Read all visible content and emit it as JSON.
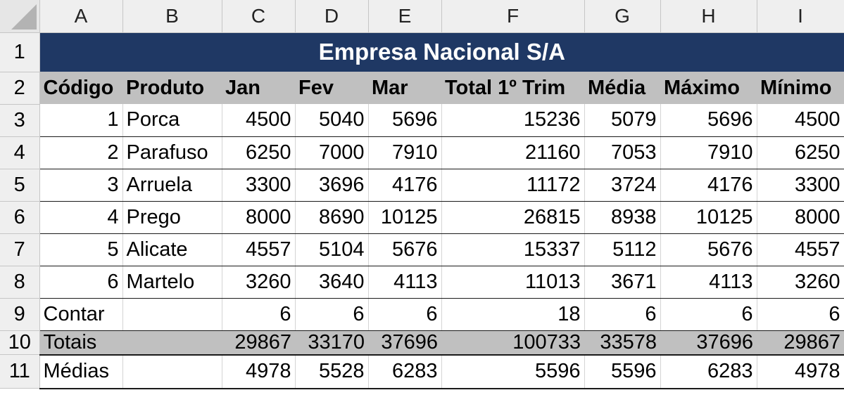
{
  "columns": [
    "A",
    "B",
    "C",
    "D",
    "E",
    "F",
    "G",
    "H",
    "I"
  ],
  "title": "Empresa Nacional S/A",
  "headers": [
    "Código",
    "Produto",
    "Jan",
    "Fev",
    "Mar",
    "Total 1º Trim",
    "Média",
    "Máximo",
    "Mínimo"
  ],
  "rows": [
    {
      "num": "3",
      "cells": [
        "1",
        "Porca",
        "4500",
        "5040",
        "5696",
        "15236",
        "5079",
        "5696",
        "4500"
      ]
    },
    {
      "num": "4",
      "cells": [
        "2",
        "Parafuso",
        "6250",
        "7000",
        "7910",
        "21160",
        "7053",
        "7910",
        "6250"
      ]
    },
    {
      "num": "5",
      "cells": [
        "3",
        "Arruela",
        "3300",
        "3696",
        "4176",
        "11172",
        "3724",
        "4176",
        "3300"
      ]
    },
    {
      "num": "6",
      "cells": [
        "4",
        "Prego",
        "8000",
        "8690",
        "10125",
        "26815",
        "8938",
        "10125",
        "8000"
      ]
    },
    {
      "num": "7",
      "cells": [
        "5",
        "Alicate",
        "4557",
        "5104",
        "5676",
        "15337",
        "5112",
        "5676",
        "4557"
      ]
    },
    {
      "num": "8",
      "cells": [
        "6",
        "Martelo",
        "3260",
        "3640",
        "4113",
        "11013",
        "3671",
        "4113",
        "3260"
      ]
    }
  ],
  "summary": [
    {
      "num": "9",
      "label": "Contar",
      "cells": [
        "",
        "6",
        "6",
        "6",
        "18",
        "6",
        "6",
        "6"
      ]
    },
    {
      "num": "10",
      "label": "Totais",
      "cells": [
        "",
        "29867",
        "33170",
        "37696",
        "100733",
        "33578",
        "37696",
        "29867"
      ]
    },
    {
      "num": "11",
      "label": "Médias",
      "cells": [
        "",
        "4978",
        "5528",
        "6283",
        "5596",
        "5596",
        "6283",
        "4978"
      ]
    }
  ],
  "row_numbers": [
    "1",
    "2"
  ],
  "colors": {
    "title_bg": "#1f3864",
    "header_bg": "#c0c0c0",
    "totals_bg": "#c0c0c0"
  }
}
